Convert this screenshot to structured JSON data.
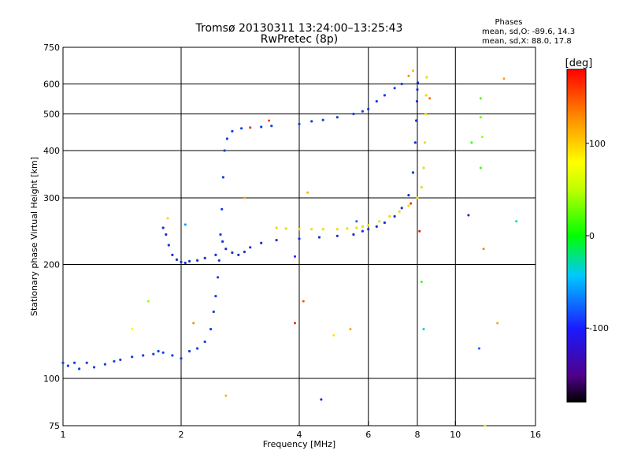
{
  "chart_data": {
    "type": "scatter",
    "title": "Tromsø 20130311 13:24:00–13:25:43",
    "subtitle": "RwPretec (8p)",
    "xlabel": "Frequency [MHz]",
    "ylabel": "Stationary phase Virtual Height [km]",
    "xscale": "log",
    "yscale": "log",
    "xlim": [
      1,
      16
    ],
    "ylim": [
      75,
      750
    ],
    "x_ticks": [
      1,
      2,
      4,
      6,
      8,
      10,
      16
    ],
    "x_tick_labels": [
      "1",
      "2",
      "4",
      "6",
      "8",
      "10",
      "16"
    ],
    "y_ticks": [
      75,
      100,
      200,
      300,
      400,
      500,
      600,
      750
    ],
    "y_tick_labels": [
      "75",
      "100",
      "200",
      "300",
      "400",
      "500",
      "600",
      "750"
    ],
    "grid": true,
    "phase_legend": {
      "title": "Phases",
      "line_o": "mean, sd,O: -89.6, 14.3",
      "line_x": "mean, sd,X:  88.0, 17.8"
    },
    "colorbar": {
      "label": "[deg]",
      "range": [
        -180,
        180
      ],
      "ticks": [
        100,
        0,
        -100
      ],
      "tick_labels": [
        "100",
        "0",
        "-100"
      ]
    },
    "series": [
      {
        "name": "O-mode low layer",
        "phase": -90,
        "color": "#1540e0",
        "points": [
          [
            1.0,
            110
          ],
          [
            1.03,
            108
          ],
          [
            1.07,
            110
          ],
          [
            1.1,
            106
          ],
          [
            1.15,
            110
          ],
          [
            1.2,
            107
          ],
          [
            1.28,
            109
          ],
          [
            1.35,
            111
          ],
          [
            1.4,
            112
          ],
          [
            1.5,
            114
          ],
          [
            1.6,
            115
          ],
          [
            1.7,
            116
          ],
          [
            1.75,
            118
          ],
          [
            1.8,
            117
          ],
          [
            1.9,
            115
          ],
          [
            2.0,
            113
          ],
          [
            2.1,
            118
          ],
          [
            2.2,
            120
          ],
          [
            2.3,
            125
          ],
          [
            2.38,
            135
          ],
          [
            2.42,
            150
          ],
          [
            2.45,
            165
          ],
          [
            2.48,
            185
          ],
          [
            2.5,
            205
          ],
          [
            2.52,
            240
          ],
          [
            2.54,
            280
          ],
          [
            2.56,
            340
          ],
          [
            2.58,
            400
          ],
          [
            2.62,
            430
          ],
          [
            2.7,
            450
          ],
          [
            2.85,
            458
          ],
          [
            3.0,
            460
          ],
          [
            3.2,
            462
          ],
          [
            3.4,
            465
          ]
        ]
      },
      {
        "name": "O-mode E/F1 bend",
        "phase": -95,
        "color": "#1a30d0",
        "points": [
          [
            1.8,
            250
          ],
          [
            1.83,
            240
          ],
          [
            1.86,
            225
          ],
          [
            1.9,
            212
          ],
          [
            1.95,
            206
          ],
          [
            2.0,
            203
          ],
          [
            2.05,
            202
          ],
          [
            2.1,
            204
          ],
          [
            2.2,
            205
          ],
          [
            2.3,
            208
          ],
          [
            2.45,
            212
          ]
        ]
      },
      {
        "name": "O-mode F-layer",
        "phase": -95,
        "color": "#1a30d0",
        "points": [
          [
            2.55,
            230
          ],
          [
            2.6,
            220
          ],
          [
            2.7,
            215
          ],
          [
            2.8,
            212
          ],
          [
            2.9,
            216
          ],
          [
            3.0,
            222
          ],
          [
            3.2,
            228
          ],
          [
            3.5,
            232
          ],
          [
            4.0,
            234
          ],
          [
            4.5,
            236
          ],
          [
            5.0,
            238
          ],
          [
            5.5,
            240
          ],
          [
            5.8,
            245
          ],
          [
            6.0,
            248
          ],
          [
            6.3,
            252
          ],
          [
            6.6,
            258
          ],
          [
            7.0,
            268
          ],
          [
            7.3,
            282
          ],
          [
            7.6,
            305
          ],
          [
            7.8,
            350
          ],
          [
            7.9,
            420
          ],
          [
            7.95,
            480
          ],
          [
            7.98,
            540
          ],
          [
            8.0,
            580
          ],
          [
            8.02,
            605
          ]
        ]
      },
      {
        "name": "O-mode upper trace",
        "phase": -90,
        "color": "#1540e0",
        "points": [
          [
            4.0,
            470
          ],
          [
            4.3,
            478
          ],
          [
            4.6,
            482
          ],
          [
            5.0,
            490
          ],
          [
            5.5,
            500
          ],
          [
            5.8,
            508
          ],
          [
            6.0,
            515
          ],
          [
            6.3,
            540
          ],
          [
            6.6,
            560
          ],
          [
            7.0,
            585
          ],
          [
            7.3,
            600
          ]
        ]
      },
      {
        "name": "X-mode F-layer",
        "phase": 88,
        "color": "#e8e000",
        "points": [
          [
            3.5,
            250
          ],
          [
            3.7,
            249
          ],
          [
            4.0,
            248
          ],
          [
            4.3,
            248
          ],
          [
            4.6,
            248
          ],
          [
            5.0,
            248
          ],
          [
            5.3,
            249
          ],
          [
            5.6,
            250
          ],
          [
            5.8,
            252
          ],
          [
            6.0,
            254
          ],
          [
            6.4,
            260
          ],
          [
            6.8,
            268
          ],
          [
            7.2,
            276
          ],
          [
            7.6,
            286
          ],
          [
            8.0,
            300
          ],
          [
            8.2,
            320
          ],
          [
            8.3,
            360
          ],
          [
            8.36,
            420
          ],
          [
            8.4,
            500
          ],
          [
            8.42,
            560
          ],
          [
            8.45,
            625
          ]
        ]
      }
    ],
    "scattered_points": [
      {
        "x": 1.5,
        "y": 135,
        "phase": 80
      },
      {
        "x": 1.65,
        "y": 160,
        "phase": 40
      },
      {
        "x": 1.85,
        "y": 265,
        "phase": 100
      },
      {
        "x": 2.05,
        "y": 255,
        "phase": -60
      },
      {
        "x": 2.15,
        "y": 140,
        "phase": 130
      },
      {
        "x": 2.6,
        "y": 90,
        "phase": 110
      },
      {
        "x": 2.9,
        "y": 300,
        "phase": 120
      },
      {
        "x": 3.0,
        "y": 460,
        "phase": 150
      },
      {
        "x": 3.35,
        "y": 480,
        "phase": 160
      },
      {
        "x": 3.9,
        "y": 210,
        "phase": -100
      },
      {
        "x": 3.9,
        "y": 140,
        "phase": 170
      },
      {
        "x": 4.1,
        "y": 160,
        "phase": 150
      },
      {
        "x": 4.2,
        "y": 310,
        "phase": 110
      },
      {
        "x": 4.55,
        "y": 88,
        "phase": -120
      },
      {
        "x": 4.9,
        "y": 130,
        "phase": 90
      },
      {
        "x": 5.4,
        "y": 135,
        "phase": 120
      },
      {
        "x": 5.6,
        "y": 260,
        "phase": -80
      },
      {
        "x": 7.7,
        "y": 290,
        "phase": 170
      },
      {
        "x": 8.1,
        "y": 245,
        "phase": 175
      },
      {
        "x": 8.2,
        "y": 180,
        "phase": 15
      },
      {
        "x": 8.3,
        "y": 135,
        "phase": -40
      },
      {
        "x": 8.6,
        "y": 550,
        "phase": 140
      },
      {
        "x": 10.8,
        "y": 270,
        "phase": -150
      },
      {
        "x": 11.0,
        "y": 420,
        "phase": 10
      },
      {
        "x": 11.6,
        "y": 360,
        "phase": 15
      },
      {
        "x": 11.6,
        "y": 550,
        "phase": 20
      },
      {
        "x": 11.6,
        "y": 490,
        "phase": 30
      },
      {
        "x": 11.7,
        "y": 435,
        "phase": 40
      },
      {
        "x": 11.8,
        "y": 220,
        "phase": 130
      },
      {
        "x": 11.5,
        "y": 120,
        "phase": -80
      },
      {
        "x": 11.9,
        "y": 75,
        "phase": 60
      },
      {
        "x": 12.8,
        "y": 140,
        "phase": 120
      },
      {
        "x": 13.3,
        "y": 620,
        "phase": 120
      },
      {
        "x": 14.3,
        "y": 260,
        "phase": -30
      },
      {
        "x": 7.8,
        "y": 650,
        "phase": 110
      },
      {
        "x": 7.6,
        "y": 630,
        "phase": 130
      }
    ]
  }
}
